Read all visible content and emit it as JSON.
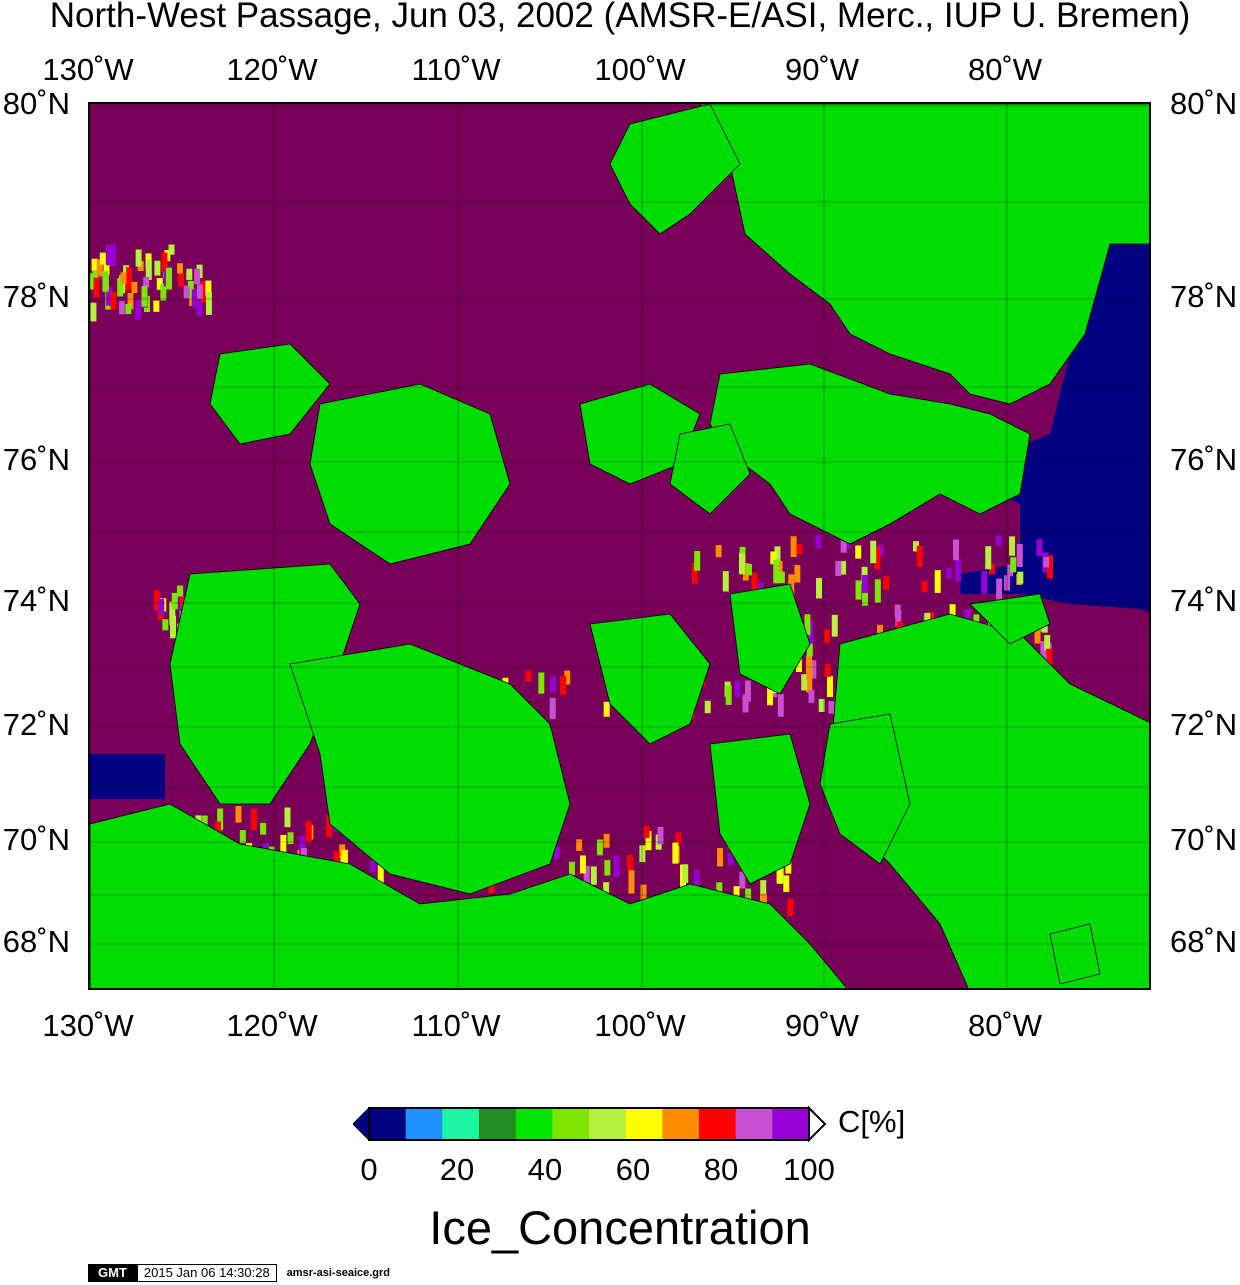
{
  "title": "North-West Passage, Jun 03, 2002 (AMSR-E/ASI, Merc., IUP U. Bremen)",
  "longitude_labels": [
    "130˚W",
    "120˚W",
    "110˚W",
    "100˚W",
    "90˚W",
    "80˚W"
  ],
  "latitude_labels": [
    "80˚N",
    "78˚N",
    "76˚N",
    "74˚N",
    "72˚N",
    "70˚N",
    "68˚N"
  ],
  "colors": {
    "water_full_ice": "#780058",
    "land": "#00dc00",
    "open_water": "#000080",
    "frame": "#000000"
  },
  "colorbar": {
    "unit_label": "C[%]",
    "tick_labels": [
      "0",
      "20",
      "40",
      "60",
      "80",
      "100"
    ],
    "colors": [
      "#000080",
      "#1e90ff",
      "#1ef5a0",
      "#228b22",
      "#00e600",
      "#7ce600",
      "#b4f03c",
      "#ffff00",
      "#ff8c00",
      "#ff0000",
      "#c850d2",
      "#9600d2"
    ]
  },
  "variable_title": "Ice_Concentration",
  "footer": {
    "logo": "GMT",
    "timestamp": "2015 Jan 06 14:30:28",
    "filename": "amsr-asi-seaice.grd"
  }
}
